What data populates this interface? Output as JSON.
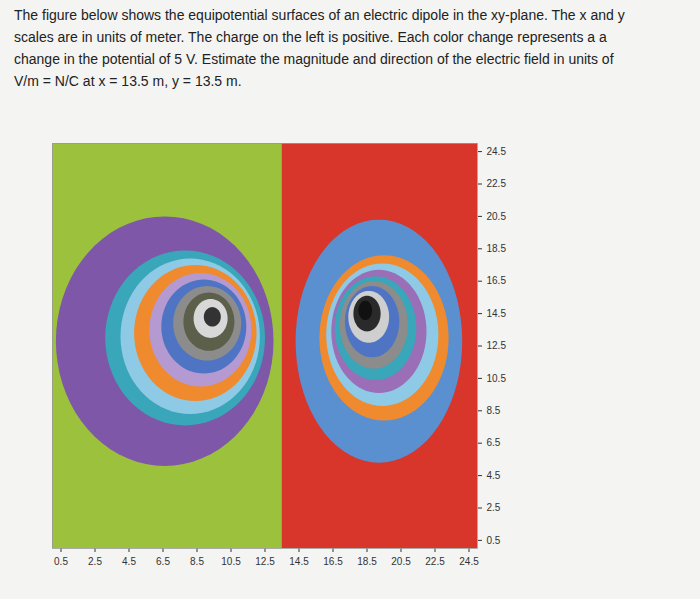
{
  "question": [
    "The figure below shows the equipotential surfaces of an electric dipole in the xy-plane. The x and y",
    "scales are in units of meter. The charge on the left is positive. Each color change represents a a",
    "change in the potential of 5 V. Estimate the magnitude and direction of the electric field in units of",
    "V/m = N/C at x = 13.5 m, y = 13.5 m."
  ],
  "chart_data": {
    "type": "equipotential",
    "xlim": [
      0,
      25
    ],
    "ylim": [
      0,
      25
    ],
    "xticks": [
      0.5,
      2.5,
      4.5,
      6.5,
      8.5,
      10.5,
      12.5,
      14.5,
      16.5,
      18.5,
      20.5,
      22.5,
      24.5
    ],
    "yticks": [
      0.5,
      2.5,
      4.5,
      6.5,
      8.5,
      10.5,
      12.5,
      14.5,
      16.5,
      18.5,
      20.5,
      22.5,
      24.5
    ],
    "regions": [
      {
        "x1": 0,
        "x2": 13.5,
        "y1": 0,
        "y2": 25,
        "color": "#9cc23d"
      },
      {
        "x1": 13.5,
        "x2": 25,
        "y1": 0,
        "y2": 25,
        "color": "#d8352b"
      }
    ],
    "rings": [
      {
        "cx": 6.6,
        "cy": 12.8,
        "rx": 6.4,
        "ry": 7.7,
        "color": "#7e57a8"
      },
      {
        "cx": 7.8,
        "cy": 13.0,
        "rx": 4.7,
        "ry": 5.4,
        "color": "#3aa6b9"
      },
      {
        "cx": 8.1,
        "cy": 13.1,
        "rx": 4.1,
        "ry": 4.8,
        "color": "#8ecae6"
      },
      {
        "cx": 8.4,
        "cy": 13.3,
        "rx": 3.6,
        "ry": 4.2,
        "color": "#ef8a2f"
      },
      {
        "cx": 8.7,
        "cy": 13.5,
        "rx": 3.0,
        "ry": 3.5,
        "color": "#b59ad1"
      },
      {
        "cx": 8.9,
        "cy": 13.7,
        "rx": 2.5,
        "ry": 2.9,
        "color": "#4f74c4"
      },
      {
        "cx": 9.1,
        "cy": 13.9,
        "rx": 2.0,
        "ry": 2.3,
        "color": "#8c8c8c"
      },
      {
        "cx": 9.2,
        "cy": 14.0,
        "rx": 1.5,
        "ry": 1.8,
        "color": "#5c5f4a"
      },
      {
        "cx": 9.3,
        "cy": 14.2,
        "rx": 1.0,
        "ry": 1.2,
        "color": "#d8d8d8"
      },
      {
        "cx": 9.4,
        "cy": 14.3,
        "rx": 0.5,
        "ry": 0.6,
        "color": "#333333"
      },
      {
        "cx": 19.2,
        "cy": 12.8,
        "rx": 4.9,
        "ry": 7.5,
        "color": "#5a8fd0"
      },
      {
        "cx": 19.5,
        "cy": 13.0,
        "rx": 3.8,
        "ry": 5.1,
        "color": "#ef8a2f"
      },
      {
        "cx": 19.4,
        "cy": 13.2,
        "rx": 3.3,
        "ry": 4.4,
        "color": "#8ecae6"
      },
      {
        "cx": 19.2,
        "cy": 13.4,
        "rx": 2.8,
        "ry": 3.8,
        "color": "#9a6fb8"
      },
      {
        "cx": 19.0,
        "cy": 13.6,
        "rx": 2.4,
        "ry": 3.2,
        "color": "#3aa6b9"
      },
      {
        "cx": 18.9,
        "cy": 13.8,
        "rx": 2.0,
        "ry": 2.7,
        "color": "#8c8c8c"
      },
      {
        "cx": 18.8,
        "cy": 14.0,
        "rx": 1.6,
        "ry": 2.2,
        "color": "#4f74c4"
      },
      {
        "cx": 18.6,
        "cy": 14.3,
        "rx": 1.2,
        "ry": 1.6,
        "color": "#cfcfcf"
      },
      {
        "cx": 18.5,
        "cy": 14.5,
        "rx": 0.8,
        "ry": 1.1,
        "color": "#2a2a2a"
      },
      {
        "cx": 18.4,
        "cy": 14.7,
        "rx": 0.4,
        "ry": 0.6,
        "color": "#111111"
      }
    ]
  }
}
